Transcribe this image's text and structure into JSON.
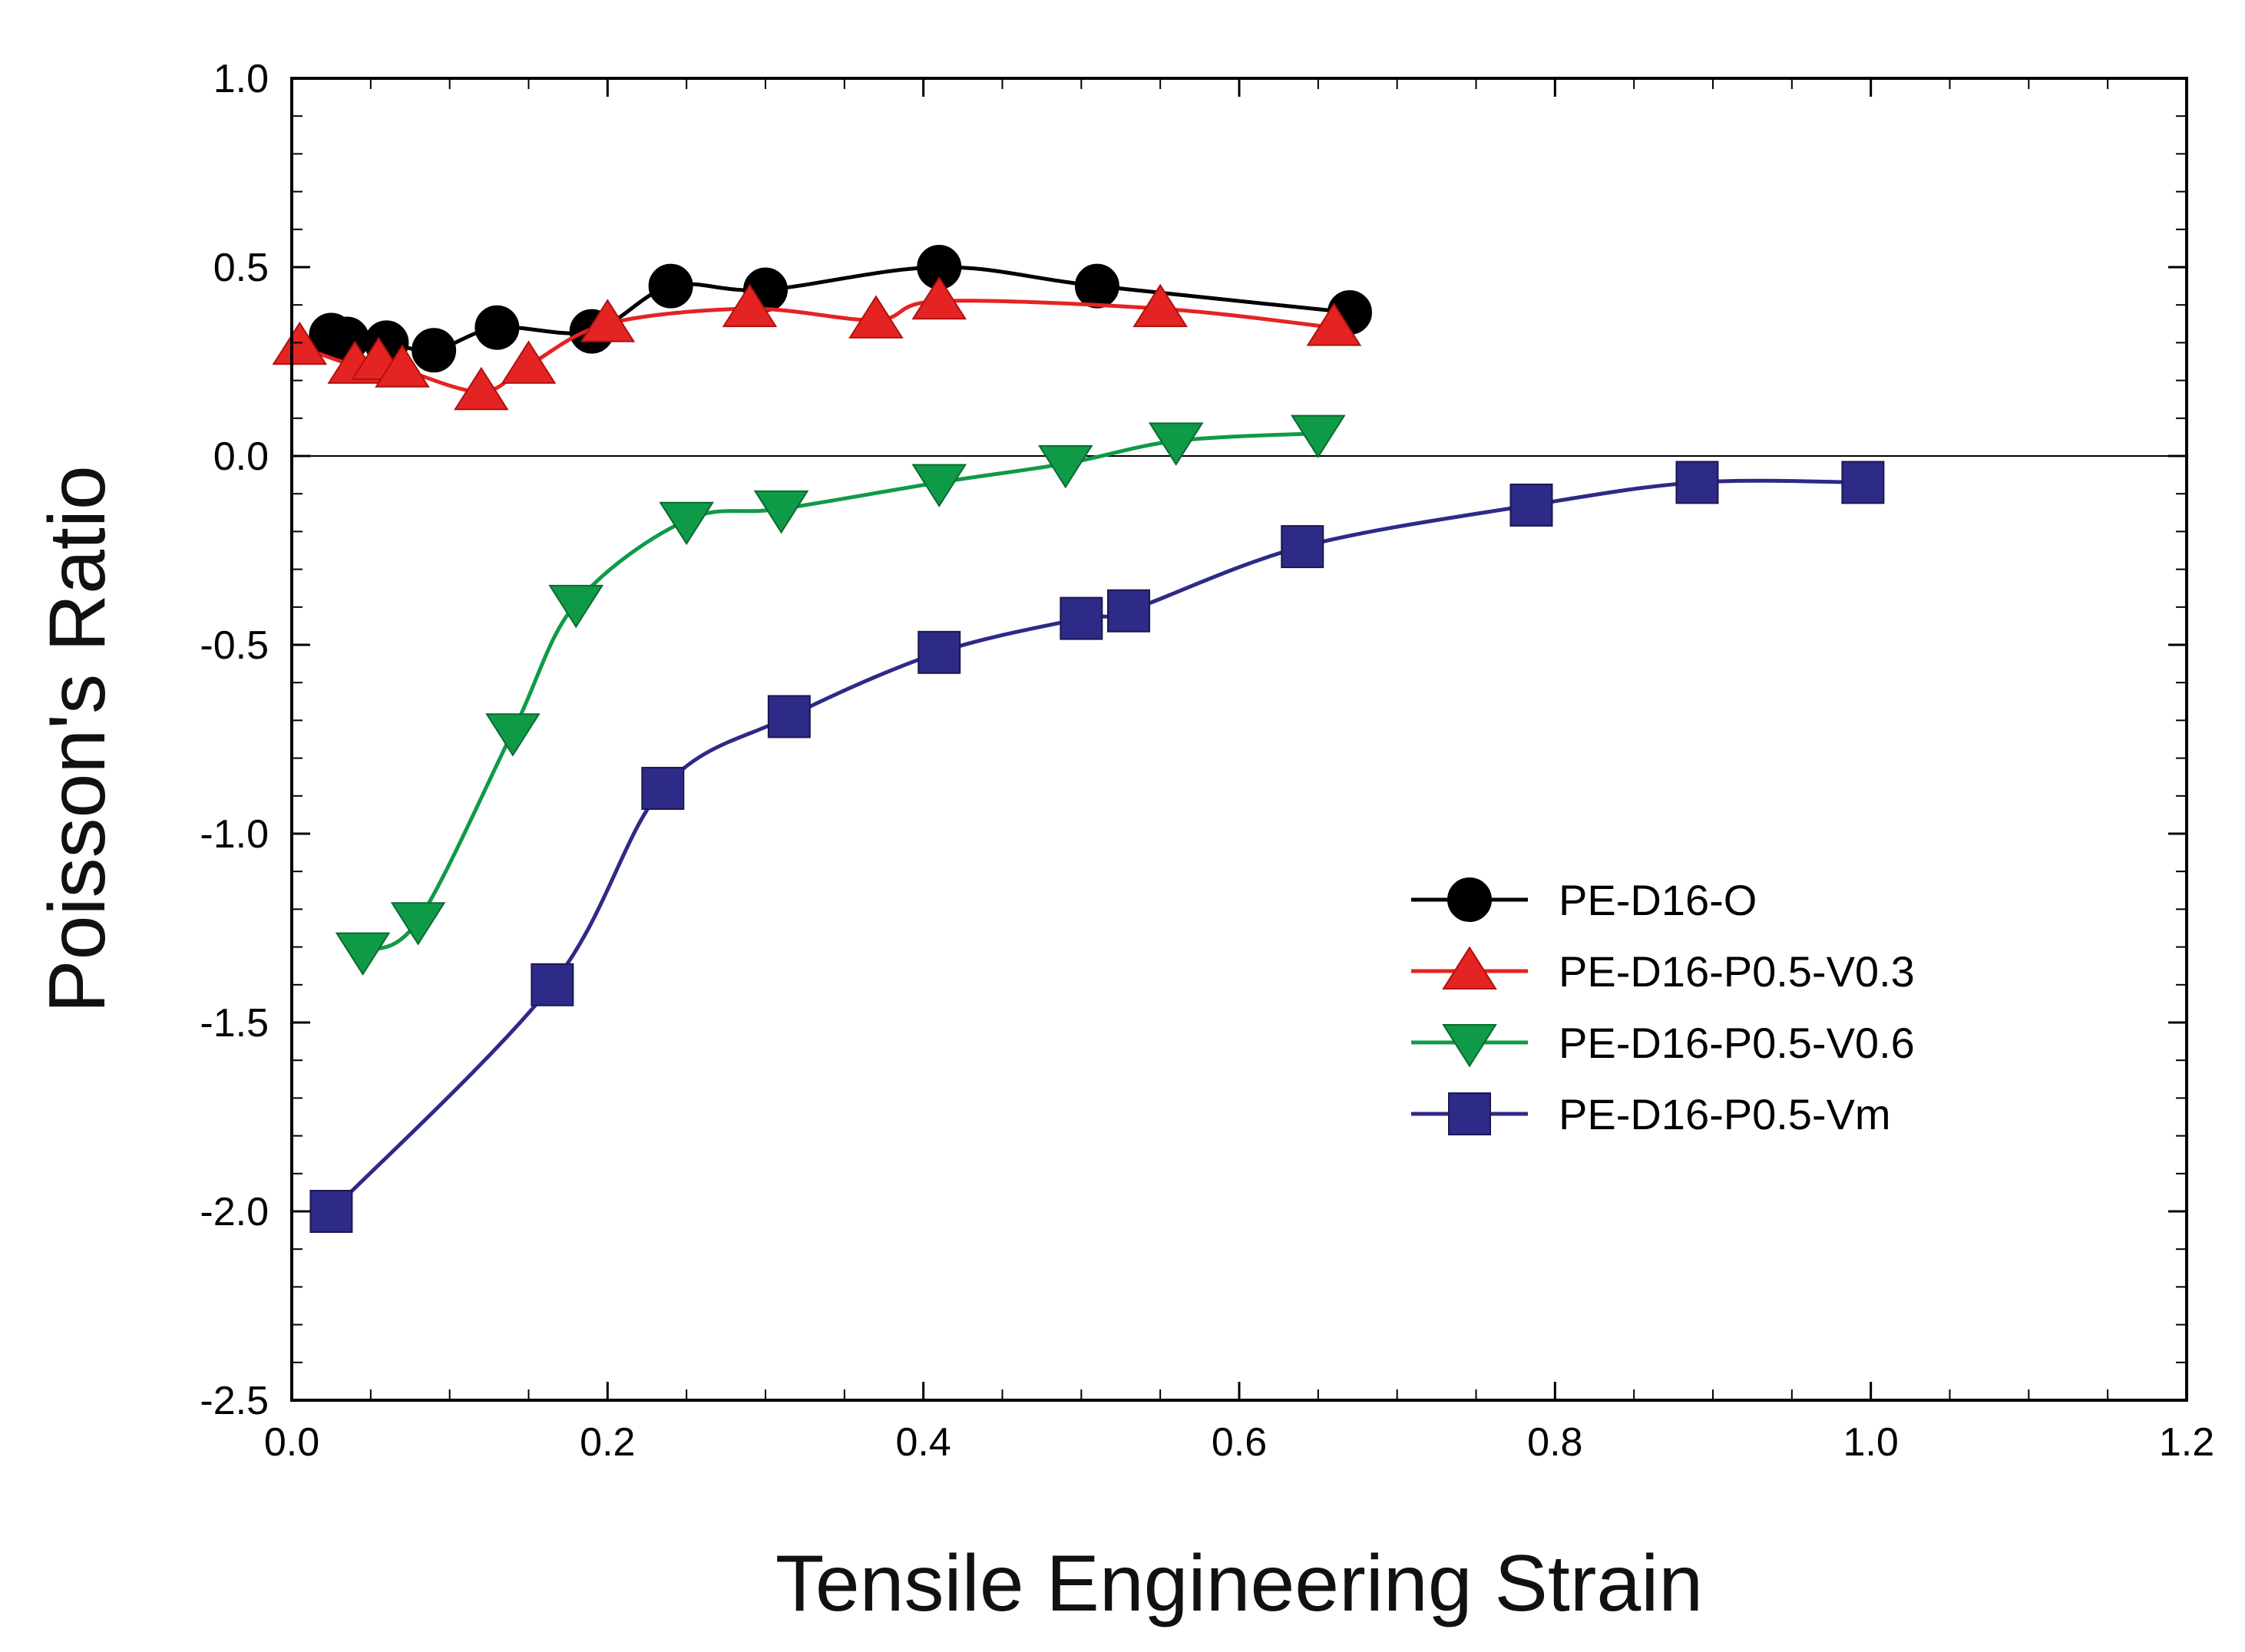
{
  "chart_data": {
    "type": "line",
    "title": "",
    "xlabel": "Tensile Engineering Strain",
    "ylabel": "Poisson's Ratio",
    "xlim": [
      0.0,
      1.2
    ],
    "ylim": [
      -2.5,
      1.0
    ],
    "xticks": [
      "0.0",
      "0.2",
      "0.4",
      "0.6",
      "0.8",
      "1.0",
      "1.2"
    ],
    "yticks": [
      "1.0",
      "0.5",
      "0.0",
      "-0.5",
      "-1.0",
      "-1.5",
      "-2.0",
      "-2.5"
    ],
    "grid": false,
    "reference_line_y": 0.0,
    "legend_position": "center-right",
    "series": [
      {
        "name": "PE-D16-O",
        "color": "#000000",
        "marker": "circle",
        "x": [
          0.025,
          0.035,
          0.06,
          0.09,
          0.13,
          0.19,
          0.24,
          0.3,
          0.41,
          0.51,
          0.67
        ],
        "y": [
          0.32,
          0.31,
          0.3,
          0.28,
          0.34,
          0.33,
          0.45,
          0.44,
          0.5,
          0.45,
          0.38
        ]
      },
      {
        "name": "PE-D16-P0.5-V0.3",
        "color": "#e32422",
        "marker": "triangle-up",
        "x": [
          0.005,
          0.04,
          0.055,
          0.07,
          0.12,
          0.15,
          0.2,
          0.29,
          0.37,
          0.41,
          0.55,
          0.66
        ],
        "y": [
          0.29,
          0.24,
          0.25,
          0.23,
          0.17,
          0.24,
          0.35,
          0.39,
          0.36,
          0.41,
          0.39,
          0.34
        ]
      },
      {
        "name": "PE-D16-P0.5-V0.6",
        "color": "#0f9a48",
        "marker": "triangle-down",
        "x": [
          0.045,
          0.08,
          0.14,
          0.18,
          0.25,
          0.31,
          0.41,
          0.49,
          0.56,
          0.65
        ],
        "y": [
          -1.31,
          -1.23,
          -0.73,
          -0.39,
          -0.17,
          -0.14,
          -0.07,
          -0.02,
          0.04,
          0.06
        ]
      },
      {
        "name": "PE-D16-P0.5-Vm",
        "color": "#2e2a87",
        "marker": "square",
        "x": [
          0.025,
          0.165,
          0.235,
          0.315,
          0.41,
          0.5,
          0.53,
          0.64,
          0.785,
          0.89,
          0.995
        ],
        "y": [
          -2.0,
          -1.4,
          -0.88,
          -0.69,
          -0.52,
          -0.43,
          -0.41,
          -0.24,
          -0.13,
          -0.07,
          -0.07
        ]
      }
    ]
  }
}
